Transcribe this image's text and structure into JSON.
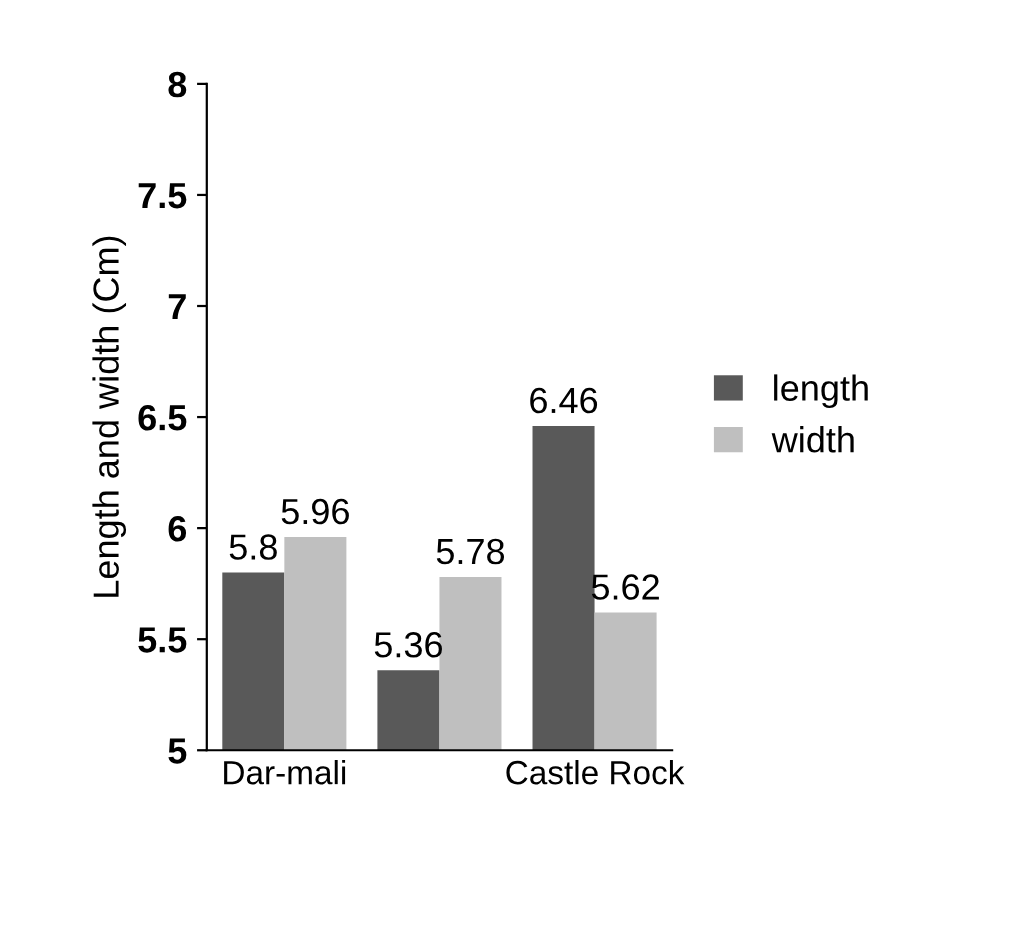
{
  "chart_data": {
    "type": "bar",
    "ylabel": "Length and width (Cm)",
    "categories": [
      "Dar-mali",
      null,
      "Castle Rock"
    ],
    "series": [
      {
        "name": "length",
        "color": "#595959",
        "values": [
          5.8,
          5.36,
          6.46
        ]
      },
      {
        "name": "width",
        "color": "#bfbfbf",
        "values": [
          5.96,
          5.78,
          5.62
        ]
      }
    ],
    "ylim": [
      5,
      8
    ],
    "yticks": [
      5,
      5.5,
      6,
      6.5,
      7,
      7.5,
      8
    ],
    "data_labels": true,
    "legend": "right",
    "grid": false
  }
}
